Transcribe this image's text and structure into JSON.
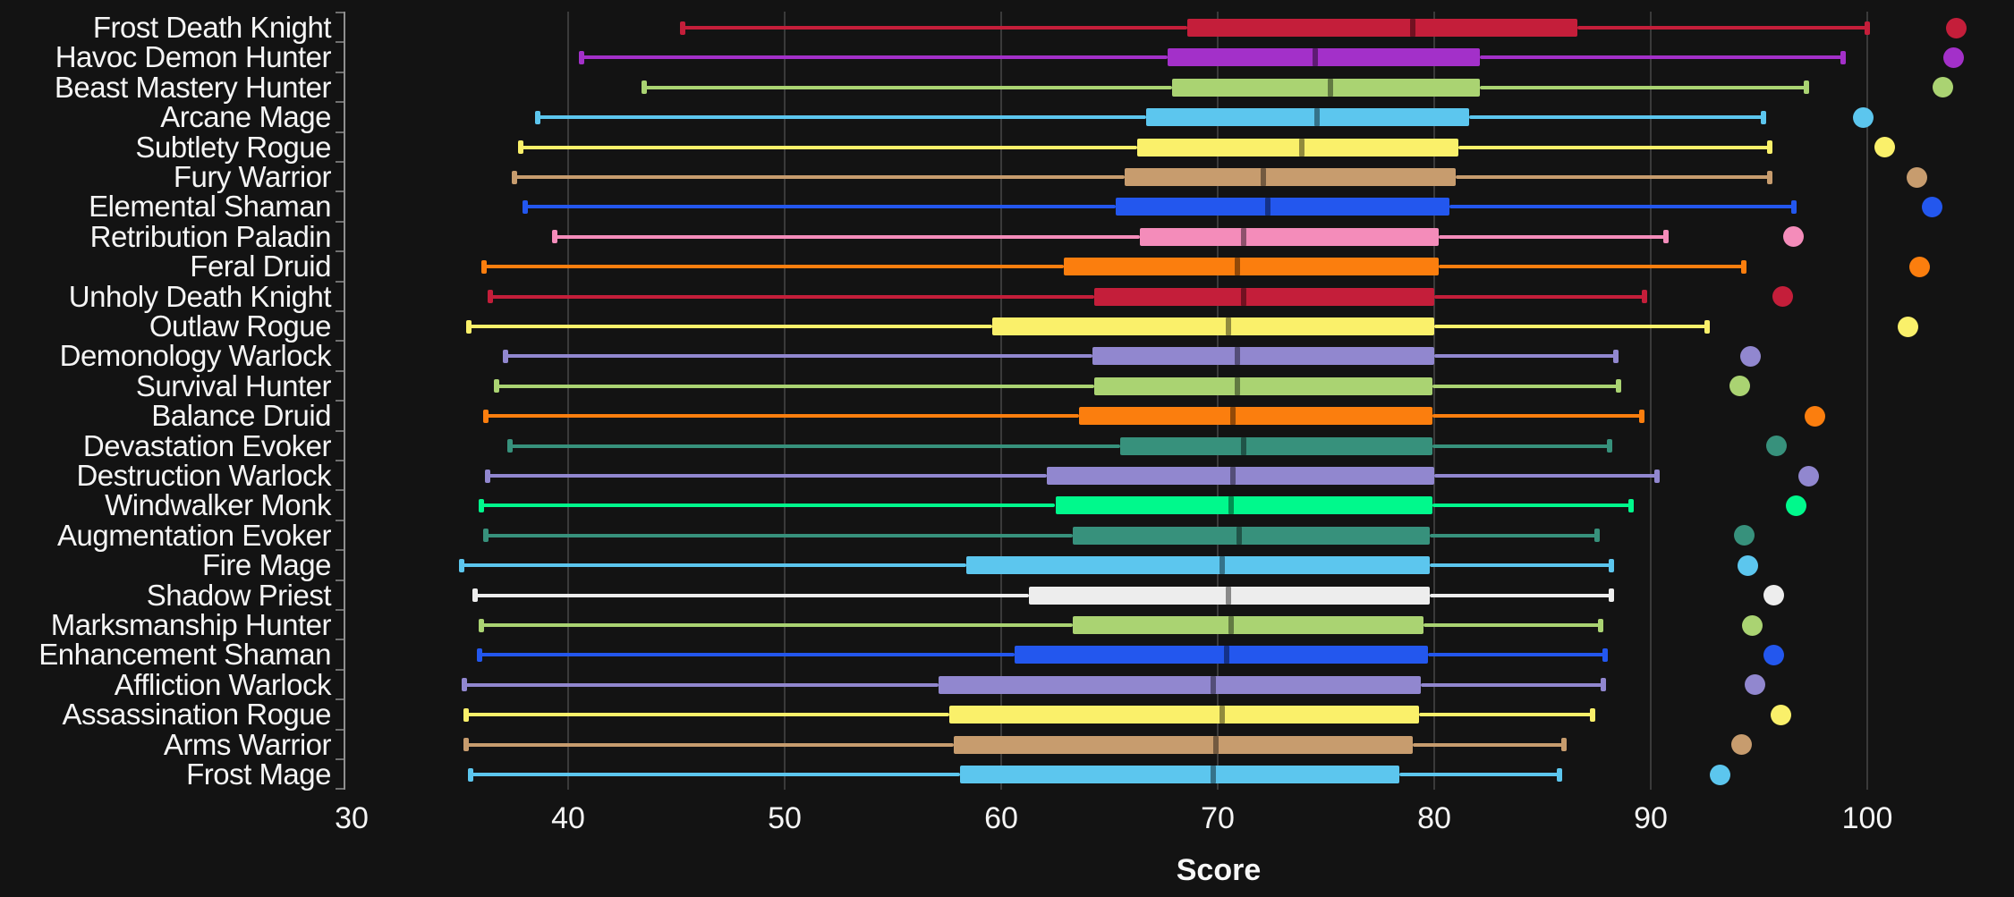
{
  "colors": {
    "background": "#131313",
    "text": "#f5f5f5",
    "grid": "#3a3a3a",
    "axis_spine": "#8f8f8f",
    "axis_tick": "#707070",
    "class_colors": {
      "death_knight": "#C41E3A",
      "demon_hunter": "#A330C9",
      "hunter": "#AAD372",
      "mage": "#5CC6EE",
      "rogue": "#FAF06A",
      "warrior": "#C79C6E",
      "shaman": "#2357EE",
      "paladin": "#F48CBA",
      "druid": "#FB7E0E",
      "warlock": "#9187CF",
      "evoker": "#37917C",
      "monk": "#00F98C",
      "priest": "#EDEDED"
    }
  },
  "chart_data": {
    "type": "boxplot",
    "orientation": "horizontal",
    "title": "",
    "xlabel": "Score",
    "ylabel": "",
    "x_ticks": [
      30,
      40,
      50,
      60,
      70,
      80,
      90,
      100
    ],
    "x_range": [
      29.7,
      106.8
    ],
    "grid": true,
    "legend": false,
    "rows": [
      {
        "label": "Frost Death Knight",
        "color": "#C41E3A",
        "whisker_low": 45.3,
        "q1": 68.6,
        "median": 79.0,
        "q3": 86.6,
        "whisker_high": 100.0,
        "outlier": 104.1
      },
      {
        "label": "Havoc Demon Hunter",
        "color": "#A330C9",
        "whisker_low": 40.6,
        "q1": 67.7,
        "median": 74.5,
        "q3": 82.1,
        "whisker_high": 98.9,
        "outlier": 104.0
      },
      {
        "label": "Beast Mastery Hunter",
        "color": "#AAD372",
        "whisker_low": 43.5,
        "q1": 67.9,
        "median": 75.2,
        "q3": 82.1,
        "whisker_high": 97.2,
        "outlier": 103.5
      },
      {
        "label": "Arcane Mage",
        "color": "#5CC6EE",
        "whisker_low": 38.6,
        "q1": 66.7,
        "median": 74.6,
        "q3": 81.6,
        "whisker_high": 95.2,
        "outlier": 99.8
      },
      {
        "label": "Subtlety Rogue",
        "color": "#FAF06A",
        "whisker_low": 37.8,
        "q1": 66.3,
        "median": 73.9,
        "q3": 81.1,
        "whisker_high": 95.5,
        "outlier": 100.8
      },
      {
        "label": "Fury Warrior",
        "color": "#C79C6E",
        "whisker_low": 37.5,
        "q1": 65.7,
        "median": 72.1,
        "q3": 81.0,
        "whisker_high": 95.5,
        "outlier": 102.3
      },
      {
        "label": "Elemental Shaman",
        "color": "#2357EE",
        "whisker_low": 38.0,
        "q1": 65.3,
        "median": 72.3,
        "q3": 80.7,
        "whisker_high": 96.6,
        "outlier": 103.0
      },
      {
        "label": "Retribution Paladin",
        "color": "#F48CBA",
        "whisker_low": 39.4,
        "q1": 66.4,
        "median": 71.2,
        "q3": 80.2,
        "whisker_high": 90.7,
        "outlier": 96.6
      },
      {
        "label": "Feral Druid",
        "color": "#FB7E0E",
        "whisker_low": 36.1,
        "q1": 62.9,
        "median": 70.9,
        "q3": 80.2,
        "whisker_high": 94.3,
        "outlier": 102.4
      },
      {
        "label": "Unholy Death Knight",
        "color": "#C41E3A",
        "whisker_low": 36.4,
        "q1": 64.3,
        "median": 71.2,
        "q3": 80.0,
        "whisker_high": 89.7,
        "outlier": 96.1
      },
      {
        "label": "Outlaw Rogue",
        "color": "#FAF06A",
        "whisker_low": 35.4,
        "q1": 59.6,
        "median": 70.5,
        "q3": 80.0,
        "whisker_high": 92.6,
        "outlier": 101.9
      },
      {
        "label": "Demonology Warlock",
        "color": "#9187CF",
        "whisker_low": 37.1,
        "q1": 64.2,
        "median": 70.9,
        "q3": 80.0,
        "whisker_high": 88.4,
        "outlier": 94.6
      },
      {
        "label": "Survival Hunter",
        "color": "#AAD372",
        "whisker_low": 36.7,
        "q1": 64.3,
        "median": 70.9,
        "q3": 79.9,
        "whisker_high": 88.5,
        "outlier": 94.1
      },
      {
        "label": "Balance Druid",
        "color": "#FB7E0E",
        "whisker_low": 36.2,
        "q1": 63.6,
        "median": 70.7,
        "q3": 79.9,
        "whisker_high": 89.6,
        "outlier": 97.6
      },
      {
        "label": "Devastation Evoker",
        "color": "#37917C",
        "whisker_low": 37.3,
        "q1": 65.5,
        "median": 71.2,
        "q3": 79.9,
        "whisker_high": 88.1,
        "outlier": 95.8
      },
      {
        "label": "Destruction Warlock",
        "color": "#9187CF",
        "whisker_low": 36.3,
        "q1": 62.1,
        "median": 70.7,
        "q3": 80.0,
        "whisker_high": 90.3,
        "outlier": 97.3
      },
      {
        "label": "Windwalker Monk",
        "color": "#00F98C",
        "whisker_low": 36.0,
        "q1": 62.5,
        "median": 70.6,
        "q3": 79.9,
        "whisker_high": 89.1,
        "outlier": 96.7
      },
      {
        "label": "Augmentation Evoker",
        "color": "#37917C",
        "whisker_low": 36.2,
        "q1": 63.3,
        "median": 71.0,
        "q3": 79.8,
        "whisker_high": 87.5,
        "outlier": 94.3
      },
      {
        "label": "Fire Mage",
        "color": "#5CC6EE",
        "whisker_low": 35.1,
        "q1": 58.4,
        "median": 70.2,
        "q3": 79.8,
        "whisker_high": 88.2,
        "outlier": 94.5
      },
      {
        "label": "Shadow Priest",
        "color": "#EDEDED",
        "whisker_low": 35.7,
        "q1": 61.3,
        "median": 70.5,
        "q3": 79.8,
        "whisker_high": 88.2,
        "outlier": 95.7
      },
      {
        "label": "Marksmanship Hunter",
        "color": "#AAD372",
        "whisker_low": 36.0,
        "q1": 63.3,
        "median": 70.6,
        "q3": 79.5,
        "whisker_high": 87.7,
        "outlier": 94.7
      },
      {
        "label": "Enhancement Shaman",
        "color": "#2357EE",
        "whisker_low": 35.9,
        "q1": 60.6,
        "median": 70.4,
        "q3": 79.7,
        "whisker_high": 87.9,
        "outlier": 95.7
      },
      {
        "label": "Affliction Warlock",
        "color": "#9187CF",
        "whisker_low": 35.2,
        "q1": 57.1,
        "median": 69.8,
        "q3": 79.4,
        "whisker_high": 87.8,
        "outlier": 94.8
      },
      {
        "label": "Assassination Rogue",
        "color": "#FAF06A",
        "whisker_low": 35.3,
        "q1": 57.6,
        "median": 70.2,
        "q3": 79.3,
        "whisker_high": 87.3,
        "outlier": 96.0
      },
      {
        "label": "Arms Warrior",
        "color": "#C79C6E",
        "whisker_low": 35.3,
        "q1": 57.8,
        "median": 69.9,
        "q3": 79.0,
        "whisker_high": 86.0,
        "outlier": 94.2
      },
      {
        "label": "Frost Mage",
        "color": "#5CC6EE",
        "whisker_low": 35.5,
        "q1": 58.1,
        "median": 69.8,
        "q3": 78.4,
        "whisker_high": 85.8,
        "outlier": 93.2
      }
    ]
  }
}
